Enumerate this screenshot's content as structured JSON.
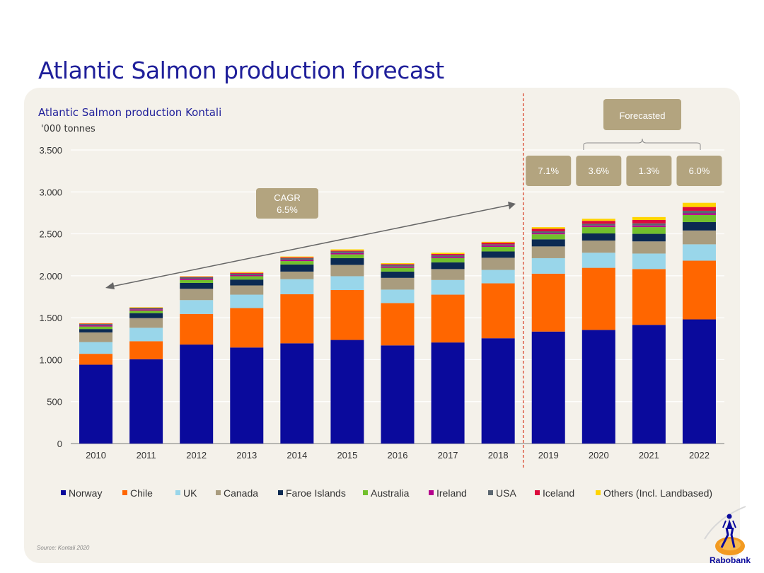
{
  "slide": {
    "title": "Atlantic Salmon production forecast",
    "source": "Source: Kontali 2020",
    "logo_text": "Rabobank"
  },
  "annotations": {
    "forecast_label": "Forecasted",
    "growth_rates": [
      "7.1%",
      "3.6%",
      "1.3%",
      "6.0%"
    ],
    "cagr_label": "CAGR",
    "cagr_value": "6.5%"
  },
  "chart_data": {
    "type": "bar",
    "stacked": true,
    "title": "Atlantic Salmon production Kontali",
    "ylabel": "'000 tonnes",
    "xlabel": "",
    "ylim": [
      0,
      3500
    ],
    "yticks": [
      0,
      500,
      1000,
      1500,
      2000,
      2500,
      3000,
      3500
    ],
    "ytick_labels": [
      "0",
      "500",
      "1.000",
      "1.500",
      "2.000",
      "2.500",
      "3.000",
      "3.500"
    ],
    "grid": true,
    "legend_position": "bottom",
    "categories": [
      "2010",
      "2011",
      "2012",
      "2013",
      "2014",
      "2015",
      "2016",
      "2017",
      "2018",
      "2019",
      "2020",
      "2021",
      "2022"
    ],
    "forecast_start": "2019",
    "series": [
      {
        "name": "Norway",
        "color": "#0a0a9c",
        "values": [
          940,
          1005,
          1180,
          1145,
          1195,
          1235,
          1170,
          1205,
          1255,
          1335,
          1355,
          1415,
          1480
        ]
      },
      {
        "name": "Chile",
        "color": "#ff6600",
        "values": [
          130,
          215,
          365,
          470,
          585,
          595,
          505,
          570,
          655,
          690,
          740,
          665,
          700
        ]
      },
      {
        "name": "UK",
        "color": "#99d6ea",
        "values": [
          140,
          160,
          165,
          160,
          180,
          165,
          160,
          175,
          160,
          185,
          180,
          185,
          195
        ]
      },
      {
        "name": "Canada",
        "color": "#a99c7e",
        "values": [
          115,
          115,
          135,
          110,
          90,
          135,
          140,
          130,
          145,
          140,
          145,
          145,
          165
        ]
      },
      {
        "name": "Faroe Islands",
        "color": "#0b2a52",
        "values": [
          40,
          60,
          70,
          70,
          85,
          80,
          75,
          80,
          75,
          85,
          85,
          90,
          100
        ]
      },
      {
        "name": "Australia",
        "color": "#72c02c",
        "values": [
          30,
          30,
          35,
          40,
          40,
          45,
          45,
          50,
          55,
          60,
          75,
          80,
          85
        ]
      },
      {
        "name": "Ireland",
        "color": "#b5008c",
        "values": [
          15,
          15,
          15,
          12,
          15,
          15,
          15,
          15,
          15,
          15,
          20,
          20,
          20
        ]
      },
      {
        "name": "USA",
        "color": "#5b6770",
        "values": [
          15,
          15,
          18,
          18,
          20,
          20,
          20,
          20,
          15,
          20,
          20,
          25,
          30
        ]
      },
      {
        "name": "Iceland",
        "color": "#dc0a3c",
        "values": [
          5,
          5,
          7,
          10,
          10,
          10,
          10,
          15,
          20,
          30,
          35,
          40,
          45
        ]
      },
      {
        "name": "Others (Incl. Landbased)",
        "color": "#ffd400",
        "values": [
          5,
          5,
          5,
          10,
          10,
          15,
          10,
          15,
          10,
          20,
          25,
          35,
          50
        ]
      }
    ]
  }
}
